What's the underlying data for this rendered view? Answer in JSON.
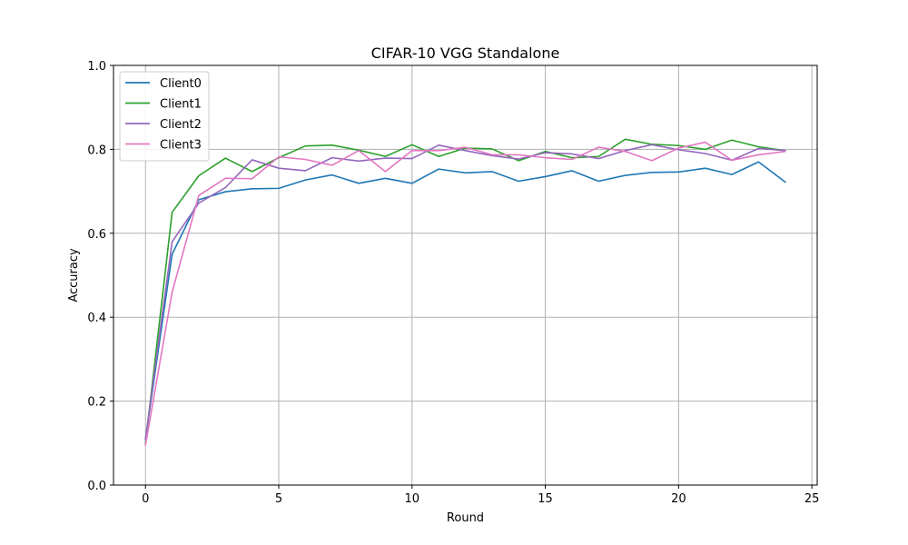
{
  "chart_data": {
    "type": "line",
    "title": "CIFAR-10 VGG Standalone",
    "xlabel": "Round",
    "ylabel": "Accuracy",
    "xlim": [
      -1.2,
      25.2
    ],
    "ylim": [
      0.0,
      1.0
    ],
    "xticks": [
      0,
      5,
      10,
      15,
      20,
      25
    ],
    "yticks": [
      0.0,
      0.2,
      0.4,
      0.6,
      0.8,
      1.0
    ],
    "xtick_labels": [
      "0",
      "5",
      "10",
      "15",
      "20",
      "25"
    ],
    "ytick_labels": [
      "0.0",
      "0.2",
      "0.4",
      "0.6",
      "0.8",
      "1.0"
    ],
    "grid": true,
    "legend_position": "top-left",
    "x": [
      0,
      1,
      2,
      3,
      4,
      5,
      6,
      7,
      8,
      9,
      10,
      11,
      12,
      13,
      14,
      15,
      16,
      17,
      18,
      19,
      20,
      21,
      22,
      23,
      24
    ],
    "series": [
      {
        "name": "Client0",
        "color": "#1f77b4",
        "values": [
          0.11,
          0.55,
          0.68,
          0.699,
          0.706,
          0.707,
          0.727,
          0.739,
          0.719,
          0.731,
          0.719,
          0.753,
          0.744,
          0.747,
          0.724,
          0.735,
          0.749,
          0.724,
          0.738,
          0.745,
          0.746,
          0.755,
          0.74,
          0.77,
          0.722
        ]
      },
      {
        "name": "Client1",
        "color": "#2ca02c",
        "values": [
          0.1,
          0.65,
          0.737,
          0.779,
          0.747,
          0.78,
          0.808,
          0.81,
          0.798,
          0.783,
          0.811,
          0.783,
          0.803,
          0.801,
          0.773,
          0.795,
          0.78,
          0.783,
          0.824,
          0.812,
          0.809,
          0.8,
          0.822,
          0.806,
          0.797
        ]
      },
      {
        "name": "Client2",
        "color": "#9467bd",
        "values": [
          0.11,
          0.58,
          0.672,
          0.709,
          0.775,
          0.755,
          0.749,
          0.78,
          0.772,
          0.779,
          0.778,
          0.81,
          0.797,
          0.785,
          0.777,
          0.792,
          0.789,
          0.778,
          0.797,
          0.811,
          0.799,
          0.79,
          0.774,
          0.802,
          0.797
        ]
      },
      {
        "name": "Client3",
        "color": "#e377c2",
        "values": [
          0.095,
          0.46,
          0.69,
          0.731,
          0.73,
          0.782,
          0.776,
          0.762,
          0.797,
          0.747,
          0.797,
          0.797,
          0.805,
          0.787,
          0.787,
          0.78,
          0.776,
          0.805,
          0.795,
          0.773,
          0.803,
          0.817,
          0.774,
          0.787,
          0.795
        ]
      }
    ]
  }
}
